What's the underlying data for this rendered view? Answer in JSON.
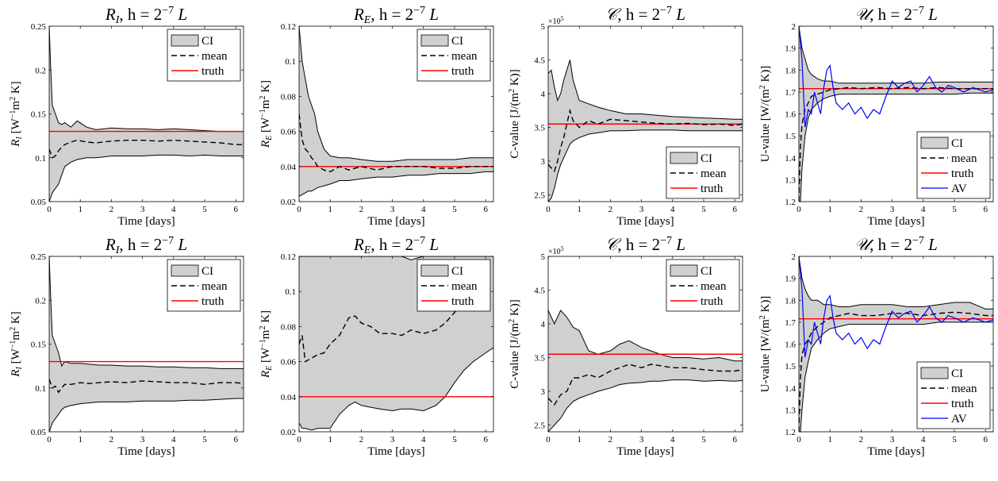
{
  "figure": {
    "x_label": "Time [days]",
    "x_ticks": [
      0,
      1,
      2,
      3,
      4,
      5,
      6
    ],
    "x_range": [
      0,
      6.25
    ],
    "colors": {
      "ci_fill": "#d0d0d0",
      "ci_edge": "#000000",
      "mean": "#000000",
      "truth": "#ff0000",
      "av": "#0000ff"
    }
  },
  "chart_data": [
    {
      "type": "area",
      "row": 0,
      "col": 0,
      "title": {
        "sym": "R",
        "sub": "I",
        "mid": ",  h = 2",
        "sup": "−7",
        "tail": "L"
      },
      "ylabel": "R_I [W⁻¹m² K]",
      "ylabel_parts": [
        "R",
        "I",
        " [W",
        "−1",
        "m",
        "2",
        " K]"
      ],
      "ylim": [
        0.05,
        0.25
      ],
      "yticks": [
        0.05,
        0.1,
        0.15,
        0.2,
        0.25
      ],
      "ytick_labels": [
        "0.05",
        "0.1",
        "0.15",
        "0.2",
        "0.25"
      ],
      "legend": {
        "position": "top-right",
        "entries": [
          "CI",
          "mean",
          "truth"
        ]
      },
      "truth": 0.13,
      "x": [
        0,
        0.05,
        0.1,
        0.2,
        0.3,
        0.4,
        0.5,
        0.7,
        0.9,
        1.2,
        1.5,
        2,
        2.5,
        3,
        3.5,
        4,
        4.5,
        5,
        5.5,
        6,
        6.25
      ],
      "upper": [
        0.25,
        0.2,
        0.16,
        0.15,
        0.14,
        0.138,
        0.14,
        0.135,
        0.142,
        0.135,
        0.132,
        0.134,
        0.133,
        0.133,
        0.132,
        0.133,
        0.132,
        0.131,
        0.13,
        0.13,
        0.13
      ],
      "mean": [
        0.11,
        0.105,
        0.1,
        0.102,
        0.108,
        0.112,
        0.115,
        0.118,
        0.12,
        0.118,
        0.117,
        0.119,
        0.12,
        0.12,
        0.119,
        0.12,
        0.119,
        0.118,
        0.117,
        0.115,
        0.115
      ],
      "lower": [
        0.05,
        0.055,
        0.06,
        0.065,
        0.07,
        0.08,
        0.09,
        0.095,
        0.098,
        0.1,
        0.1,
        0.102,
        0.102,
        0.102,
        0.103,
        0.103,
        0.102,
        0.103,
        0.102,
        0.102,
        0.102
      ]
    },
    {
      "type": "area",
      "row": 0,
      "col": 1,
      "title": {
        "sym": "R",
        "sub": "E",
        "mid": ",  h = 2",
        "sup": "−7",
        "tail": "L"
      },
      "ylabel_parts": [
        "R",
        "E",
        " [W",
        "−1",
        "m",
        "2",
        " K]"
      ],
      "ylim": [
        0.02,
        0.12
      ],
      "yticks": [
        0.02,
        0.04,
        0.06,
        0.08,
        0.1,
        0.12
      ],
      "ytick_labels": [
        "0.02",
        "0.04",
        "0.06",
        "0.08",
        "0.1",
        "0.12"
      ],
      "legend": {
        "position": "top-right",
        "entries": [
          "CI",
          "mean",
          "truth"
        ]
      },
      "truth": 0.04,
      "x": [
        0,
        0.1,
        0.2,
        0.3,
        0.4,
        0.5,
        0.6,
        0.8,
        1.0,
        1.3,
        1.6,
        2,
        2.5,
        3,
        3.5,
        4,
        4.5,
        5,
        5.5,
        6,
        6.25
      ],
      "upper": [
        0.12,
        0.1,
        0.09,
        0.08,
        0.075,
        0.07,
        0.06,
        0.05,
        0.046,
        0.045,
        0.045,
        0.044,
        0.043,
        0.043,
        0.044,
        0.044,
        0.044,
        0.044,
        0.045,
        0.045,
        0.045
      ],
      "mean": [
        0.07,
        0.055,
        0.05,
        0.048,
        0.045,
        0.043,
        0.04,
        0.038,
        0.037,
        0.04,
        0.038,
        0.04,
        0.038,
        0.04,
        0.04,
        0.04,
        0.039,
        0.039,
        0.04,
        0.04,
        0.04
      ],
      "lower": [
        0.023,
        0.024,
        0.025,
        0.026,
        0.026,
        0.027,
        0.028,
        0.029,
        0.03,
        0.032,
        0.032,
        0.033,
        0.034,
        0.034,
        0.035,
        0.035,
        0.036,
        0.036,
        0.036,
        0.037,
        0.037
      ]
    },
    {
      "type": "area",
      "row": 0,
      "col": 2,
      "title": {
        "sym": "𝒞",
        "sub": "",
        "mid": ",  h = 2",
        "sup": "−7",
        "tail": "L"
      },
      "ylabel_parts": [
        "C-value [J/(m",
        "2",
        " K)]"
      ],
      "ylim": [
        2.4,
        5
      ],
      "yticks": [
        2.5,
        3,
        3.5,
        4,
        4.5,
        5
      ],
      "ytick_labels": [
        "2.5",
        "3",
        "3.5",
        "4",
        "4.5",
        "5"
      ],
      "exponent": "×10",
      "exponent_power": "5",
      "legend": {
        "position": "bottom-right",
        "entries": [
          "CI",
          "mean",
          "truth"
        ]
      },
      "truth": 3.55,
      "x": [
        0,
        0.1,
        0.2,
        0.3,
        0.4,
        0.5,
        0.6,
        0.7,
        0.8,
        1.0,
        1.3,
        1.6,
        2,
        2.5,
        3,
        3.5,
        4,
        4.5,
        5,
        5.5,
        6,
        6.25
      ],
      "upper": [
        4.3,
        4.35,
        4.1,
        3.9,
        4.0,
        4.2,
        4.35,
        4.5,
        4.2,
        3.9,
        3.85,
        3.8,
        3.75,
        3.7,
        3.7,
        3.68,
        3.66,
        3.65,
        3.64,
        3.63,
        3.62,
        3.62
      ],
      "mean": [
        2.95,
        2.9,
        2.85,
        3.0,
        3.2,
        3.35,
        3.55,
        3.75,
        3.6,
        3.5,
        3.6,
        3.55,
        3.62,
        3.6,
        3.58,
        3.56,
        3.55,
        3.56,
        3.54,
        3.55,
        3.53,
        3.55
      ],
      "lower": [
        2.4,
        2.45,
        2.6,
        2.8,
        2.95,
        3.05,
        3.15,
        3.25,
        3.3,
        3.35,
        3.4,
        3.42,
        3.45,
        3.45,
        3.46,
        3.46,
        3.46,
        3.45,
        3.45,
        3.45,
        3.45,
        3.45
      ]
    },
    {
      "type": "area",
      "row": 0,
      "col": 3,
      "title": {
        "sym": "𝒰",
        "sub": "",
        "mid": ",  h = 2",
        "sup": "−7",
        "tail": "L"
      },
      "ylabel_parts": [
        "U-value [W/(m",
        "2",
        " K)]"
      ],
      "ylim": [
        1.2,
        2
      ],
      "yticks": [
        1.2,
        1.3,
        1.4,
        1.5,
        1.6,
        1.7,
        1.8,
        1.9,
        2
      ],
      "ytick_labels": [
        "1.2",
        "1.3",
        "1.4",
        "1.5",
        "1.6",
        "1.7",
        "1.8",
        "1.9",
        "2"
      ],
      "legend": {
        "position": "bottom-right",
        "entries": [
          "CI",
          "mean",
          "truth",
          "AV"
        ]
      },
      "truth": 1.715,
      "x": [
        0,
        0.05,
        0.1,
        0.2,
        0.3,
        0.4,
        0.6,
        0.8,
        1.0,
        1.3,
        1.6,
        2,
        2.5,
        3,
        3.5,
        4,
        4.5,
        5,
        5.5,
        6,
        6.25
      ],
      "upper": [
        2.0,
        1.95,
        1.9,
        1.85,
        1.8,
        1.78,
        1.76,
        1.75,
        1.75,
        1.74,
        1.74,
        1.74,
        1.74,
        1.74,
        1.74,
        1.74,
        1.745,
        1.745,
        1.745,
        1.745,
        1.745
      ],
      "mean": [
        1.2,
        1.45,
        1.55,
        1.62,
        1.65,
        1.68,
        1.69,
        1.7,
        1.71,
        1.715,
        1.72,
        1.715,
        1.72,
        1.715,
        1.72,
        1.715,
        1.72,
        1.715,
        1.715,
        1.715,
        1.715
      ],
      "lower": [
        1.2,
        1.2,
        1.35,
        1.5,
        1.58,
        1.62,
        1.65,
        1.67,
        1.68,
        1.69,
        1.69,
        1.69,
        1.69,
        1.69,
        1.69,
        1.69,
        1.69,
        1.69,
        1.695,
        1.695,
        1.695
      ],
      "av_x": [
        0,
        0.1,
        0.2,
        0.3,
        0.4,
        0.5,
        0.6,
        0.7,
        0.8,
        0.9,
        1.0,
        1.1,
        1.2,
        1.4,
        1.6,
        1.8,
        2.0,
        2.2,
        2.4,
        2.6,
        2.8,
        3.0,
        3.2,
        3.4,
        3.6,
        3.8,
        4.0,
        4.2,
        4.4,
        4.6,
        4.8,
        5.0,
        5.3,
        5.6,
        6.0,
        6.25
      ],
      "av_y": [
        2.0,
        1.85,
        1.54,
        1.62,
        1.6,
        1.7,
        1.65,
        1.6,
        1.72,
        1.8,
        1.82,
        1.72,
        1.65,
        1.62,
        1.65,
        1.6,
        1.63,
        1.58,
        1.62,
        1.6,
        1.68,
        1.75,
        1.72,
        1.74,
        1.75,
        1.7,
        1.73,
        1.77,
        1.72,
        1.7,
        1.73,
        1.72,
        1.7,
        1.72,
        1.7,
        1.71
      ]
    },
    {
      "type": "area",
      "row": 1,
      "col": 0,
      "title": {
        "sym": "R",
        "sub": "I",
        "mid": ",  h = 2",
        "sup": "−7",
        "tail": "L"
      },
      "ylabel_parts": [
        "R",
        "I",
        " [W",
        "−1",
        "m",
        "2",
        " K]"
      ],
      "ylim": [
        0.05,
        0.25
      ],
      "yticks": [
        0.05,
        0.1,
        0.15,
        0.2,
        0.25
      ],
      "ytick_labels": [
        "0.05",
        "0.1",
        "0.15",
        "0.2",
        "0.25"
      ],
      "legend": {
        "position": "top-right",
        "entries": [
          "CI",
          "mean",
          "truth"
        ]
      },
      "truth": 0.13,
      "x": [
        0,
        0.05,
        0.1,
        0.2,
        0.3,
        0.4,
        0.5,
        0.7,
        1.0,
        1.3,
        1.6,
        2,
        2.5,
        3,
        3.5,
        4,
        4.5,
        5,
        5.5,
        6,
        6.25
      ],
      "upper": [
        0.25,
        0.2,
        0.16,
        0.15,
        0.14,
        0.125,
        0.13,
        0.128,
        0.128,
        0.127,
        0.126,
        0.126,
        0.125,
        0.125,
        0.124,
        0.124,
        0.123,
        0.123,
        0.122,
        0.122,
        0.122
      ],
      "mean": [
        0.11,
        0.105,
        0.1,
        0.102,
        0.095,
        0.1,
        0.104,
        0.104,
        0.106,
        0.105,
        0.106,
        0.107,
        0.106,
        0.108,
        0.107,
        0.106,
        0.106,
        0.104,
        0.106,
        0.106,
        0.105
      ],
      "lower": [
        0.05,
        0.055,
        0.06,
        0.065,
        0.07,
        0.075,
        0.078,
        0.08,
        0.082,
        0.083,
        0.084,
        0.084,
        0.084,
        0.085,
        0.085,
        0.085,
        0.086,
        0.086,
        0.087,
        0.088,
        0.088
      ]
    },
    {
      "type": "area",
      "row": 1,
      "col": 1,
      "title": {
        "sym": "R",
        "sub": "E",
        "mid": ",  h = 2",
        "sup": "−7",
        "tail": "L"
      },
      "ylabel_parts": [
        "R",
        "E",
        " [W",
        "−1",
        "m",
        "2",
        " K]"
      ],
      "ylim": [
        0.02,
        0.12
      ],
      "yticks": [
        0.02,
        0.04,
        0.06,
        0.08,
        0.1,
        0.12
      ],
      "ytick_labels": [
        "0.02",
        "0.04",
        "0.06",
        "0.08",
        "0.1",
        "0.12"
      ],
      "legend": {
        "position": "top-right",
        "entries": [
          "CI",
          "mean",
          "truth"
        ]
      },
      "truth": 0.04,
      "x": [
        0,
        0.1,
        0.2,
        0.4,
        0.6,
        0.8,
        1.0,
        1.3,
        1.6,
        1.8,
        2.0,
        2.3,
        2.6,
        3.0,
        3.3,
        3.6,
        4.0,
        4.4,
        4.7,
        5.0,
        5.3,
        5.6,
        6.0,
        6.25
      ],
      "upper": [
        0.12,
        0.12,
        0.12,
        0.12,
        0.12,
        0.12,
        0.12,
        0.12,
        0.12,
        0.12,
        0.12,
        0.12,
        0.12,
        0.12,
        0.12,
        0.118,
        0.12,
        0.12,
        0.12,
        0.12,
        0.12,
        0.12,
        0.12,
        0.12
      ],
      "mean": [
        0.07,
        0.075,
        0.06,
        0.062,
        0.064,
        0.065,
        0.07,
        0.075,
        0.085,
        0.086,
        0.082,
        0.08,
        0.076,
        0.076,
        0.075,
        0.078,
        0.076,
        0.078,
        0.082,
        0.088,
        0.095,
        0.09,
        0.09,
        0.092
      ],
      "lower": [
        0.025,
        0.022,
        0.022,
        0.021,
        0.022,
        0.022,
        0.022,
        0.03,
        0.035,
        0.037,
        0.035,
        0.034,
        0.033,
        0.032,
        0.033,
        0.033,
        0.032,
        0.035,
        0.04,
        0.048,
        0.055,
        0.06,
        0.065,
        0.068
      ]
    },
    {
      "type": "area",
      "row": 1,
      "col": 2,
      "title": {
        "sym": "𝒞",
        "sub": "",
        "mid": ",  h = 2",
        "sup": "−7",
        "tail": "L"
      },
      "ylabel_parts": [
        "C-value [J/(m",
        "2",
        " K)]"
      ],
      "ylim": [
        2.4,
        5
      ],
      "yticks": [
        2.5,
        3,
        3.5,
        4,
        4.5,
        5
      ],
      "ytick_labels": [
        "2.5",
        "3",
        "3.5",
        "4",
        "4.5",
        "5"
      ],
      "exponent": "×10",
      "exponent_power": "5",
      "legend": {
        "position": "top-right",
        "entries": [
          "CI",
          "mean",
          "truth"
        ]
      },
      "truth": 3.55,
      "x": [
        0,
        0.1,
        0.2,
        0.4,
        0.6,
        0.8,
        1.0,
        1.3,
        1.6,
        2.0,
        2.3,
        2.6,
        3.0,
        3.3,
        3.6,
        4.0,
        4.5,
        5.0,
        5.5,
        6.0,
        6.25
      ],
      "upper": [
        4.2,
        4.1,
        4.0,
        4.2,
        4.1,
        3.95,
        3.9,
        3.6,
        3.55,
        3.6,
        3.7,
        3.75,
        3.65,
        3.6,
        3.55,
        3.5,
        3.5,
        3.48,
        3.5,
        3.45,
        3.45
      ],
      "mean": [
        2.9,
        2.85,
        2.8,
        2.95,
        3.0,
        3.2,
        3.2,
        3.25,
        3.2,
        3.3,
        3.35,
        3.4,
        3.35,
        3.4,
        3.38,
        3.35,
        3.35,
        3.32,
        3.3,
        3.3,
        3.32
      ],
      "lower": [
        2.4,
        2.45,
        2.5,
        2.6,
        2.75,
        2.85,
        2.9,
        2.95,
        3.0,
        3.05,
        3.1,
        3.12,
        3.13,
        3.15,
        3.15,
        3.17,
        3.17,
        3.15,
        3.16,
        3.15,
        3.16
      ]
    },
    {
      "type": "area",
      "row": 1,
      "col": 3,
      "title": {
        "sym": "𝒰",
        "sub": "",
        "mid": ",  h = 2",
        "sup": "−7",
        "tail": "L"
      },
      "ylabel_parts": [
        "U-value [W/(m",
        "2",
        " K)]"
      ],
      "ylim": [
        1.2,
        2
      ],
      "yticks": [
        1.2,
        1.3,
        1.4,
        1.5,
        1.6,
        1.7,
        1.8,
        1.9,
        2
      ],
      "ytick_labels": [
        "1.2",
        "1.3",
        "1.4",
        "1.5",
        "1.6",
        "1.7",
        "1.8",
        "1.9",
        "2"
      ],
      "legend": {
        "position": "bottom-right",
        "entries": [
          "CI",
          "mean",
          "truth",
          "AV"
        ]
      },
      "truth": 1.715,
      "x": [
        0,
        0.05,
        0.1,
        0.2,
        0.3,
        0.4,
        0.6,
        0.8,
        1.0,
        1.3,
        1.6,
        2,
        2.5,
        3,
        3.5,
        4,
        4.5,
        5,
        5.5,
        6,
        6.25
      ],
      "upper": [
        2.0,
        1.95,
        1.9,
        1.85,
        1.82,
        1.8,
        1.8,
        1.78,
        1.78,
        1.77,
        1.77,
        1.78,
        1.78,
        1.78,
        1.77,
        1.77,
        1.78,
        1.79,
        1.79,
        1.76,
        1.76
      ],
      "mean": [
        1.2,
        1.45,
        1.55,
        1.6,
        1.62,
        1.65,
        1.68,
        1.7,
        1.72,
        1.73,
        1.74,
        1.73,
        1.73,
        1.74,
        1.74,
        1.73,
        1.74,
        1.745,
        1.74,
        1.73,
        1.73
      ],
      "lower": [
        1.2,
        1.2,
        1.3,
        1.45,
        1.52,
        1.58,
        1.62,
        1.65,
        1.67,
        1.68,
        1.69,
        1.69,
        1.69,
        1.69,
        1.69,
        1.69,
        1.7,
        1.7,
        1.7,
        1.7,
        1.7
      ],
      "av_x": [
        0,
        0.1,
        0.2,
        0.3,
        0.4,
        0.5,
        0.6,
        0.7,
        0.8,
        0.9,
        1.0,
        1.1,
        1.2,
        1.4,
        1.6,
        1.8,
        2.0,
        2.2,
        2.4,
        2.6,
        2.8,
        3.0,
        3.2,
        3.4,
        3.6,
        3.8,
        4.0,
        4.2,
        4.4,
        4.6,
        4.8,
        5.0,
        5.3,
        5.6,
        6.0,
        6.25
      ],
      "av_y": [
        2.0,
        1.85,
        1.54,
        1.62,
        1.6,
        1.7,
        1.65,
        1.6,
        1.72,
        1.8,
        1.82,
        1.72,
        1.65,
        1.62,
        1.65,
        1.6,
        1.63,
        1.58,
        1.62,
        1.6,
        1.68,
        1.75,
        1.72,
        1.74,
        1.75,
        1.7,
        1.73,
        1.77,
        1.72,
        1.7,
        1.73,
        1.72,
        1.7,
        1.72,
        1.7,
        1.71
      ]
    }
  ]
}
